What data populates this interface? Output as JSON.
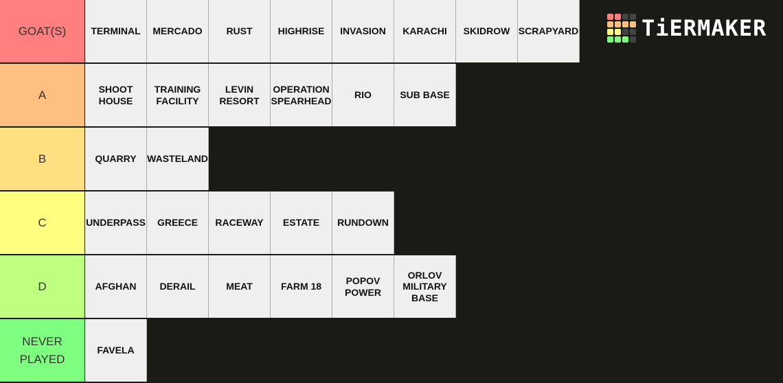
{
  "logo": {
    "text": "TiERMAKER",
    "grid_colors": [
      "#ff7f7f",
      "#ff7f7f",
      "#444",
      "#444",
      "#ffbf7f",
      "#ffbf7f",
      "#ffbf7f",
      "#ffbf7f",
      "#ffff7f",
      "#ffff7f",
      "#444",
      "#444",
      "#7fff7f",
      "#7fff7f",
      "#7fff7f",
      "#444"
    ]
  },
  "background": "#1a1a17",
  "tiers": [
    {
      "label": "GOAT(S)",
      "color": "#ff7f7f",
      "items": [
        "TERMINAL",
        "MERCADO",
        "RUST",
        "HIGHRISE",
        "INVASION",
        "KARACHI",
        "SKIDROW",
        "SCRAPYARD"
      ]
    },
    {
      "label": "A",
      "color": "#ffbf7f",
      "items": [
        "SHOOT\nHOUSE",
        "TRAINING\nFACILITY",
        "LEVIN\nRESORT",
        "OPERATION\nSPEARHEAD",
        "RIO",
        "SUB BASE"
      ]
    },
    {
      "label": "B",
      "color": "#ffdf7f",
      "items": [
        "QUARRY",
        "WASTELAND"
      ]
    },
    {
      "label": "C",
      "color": "#ffff7f",
      "items": [
        "UNDERPASS",
        "GREECE",
        "RACEWAY",
        "ESTATE",
        "RUNDOWN"
      ]
    },
    {
      "label": "D",
      "color": "#bfff7f",
      "items": [
        "AFGHAN",
        "DERAIL",
        "MEAT",
        "FARM 18",
        "POPOV\nPOWER",
        "ORLOV\nMILITARY\nBASE"
      ]
    },
    {
      "label": "NEVER\nPLAYED",
      "color": "#7fff7f",
      "items": [
        "FAVELA"
      ]
    }
  ]
}
